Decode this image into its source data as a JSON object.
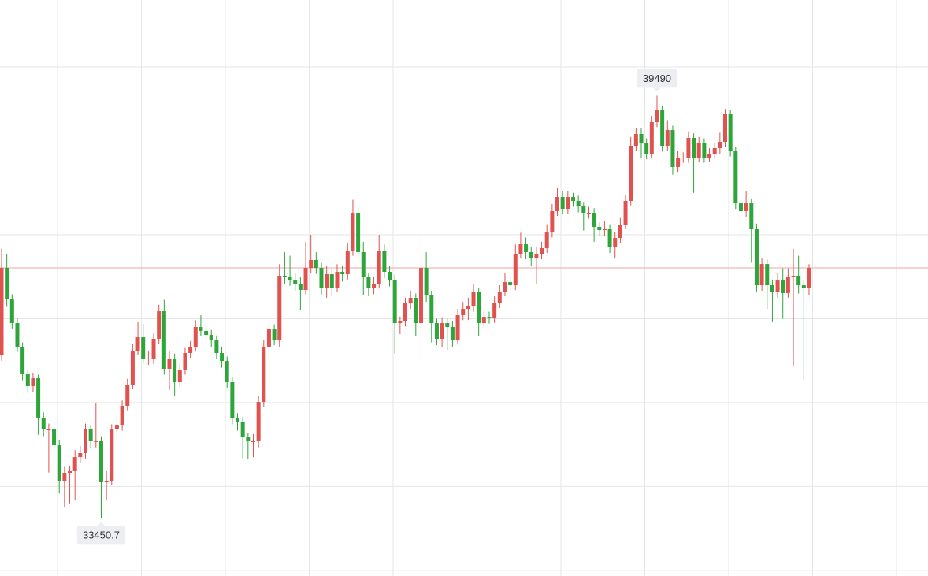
{
  "chart_data": {
    "type": "candlestick",
    "open": [
      35786,
      37026,
      36575,
      36237,
      35899,
      35505,
      35336,
      35448,
      34885,
      34716,
      34716,
      34490,
      33983,
      34096,
      34119,
      34321,
      34378,
      34716,
      34547,
      34547,
      33961,
      33983,
      34716,
      34772,
      35054,
      35358,
      35843,
      36034,
      35730,
      35730,
      36012,
      36406,
      35584,
      35730,
      35392,
      35561,
      35809,
      35899,
      36181,
      36125,
      36068,
      35989,
      35809,
      35696,
      35392,
      34885,
      34829,
      34603,
      34547,
      34547,
      35110,
      35899,
      36147,
      35989,
      36914,
      36891,
      36857,
      36801,
      36711,
      37026,
      37139,
      37026,
      36744,
      36936,
      36744,
      36970,
      36936,
      37274,
      37815,
      37252,
      36891,
      36744,
      36801,
      37274,
      36970,
      36857,
      36237,
      36260,
      36519,
      36598,
      36237,
      37026,
      36632,
      36237,
      36012,
      36237,
      36181,
      35989,
      36350,
      36440,
      36485,
      36688,
      36237,
      36327,
      36305,
      36519,
      36688,
      36823,
      36778,
      37229,
      37364,
      37252,
      37161,
      37229,
      37308,
      37533,
      37838,
      38040,
      37871,
      38040,
      37984,
      37905,
      37815,
      37815,
      37612,
      37567,
      37590,
      37330,
      37454,
      37646,
      37984,
      38773,
      38942,
      38807,
      38660,
      39111,
      39280,
      38773,
      38998,
      38469,
      38604,
      38604,
      38886,
      38604,
      38807,
      38604,
      38660,
      38739,
      38829,
      39224,
      38694,
      37950,
      37838,
      37950,
      37590,
      36778,
      37082,
      36778,
      36688,
      36857,
      36666,
      36891,
      36914,
      36778,
      36744
    ],
    "high": [
      37300,
      37230,
      36650,
      36300,
      35960,
      35560,
      35520,
      35500,
      34960,
      34800,
      34790,
      34560,
      34180,
      34200,
      34420,
      34480,
      34800,
      34780,
      35100,
      34620,
      34120,
      34790,
      34880,
      35130,
      35440,
      35940,
      36250,
      36230,
      35830,
      36100,
      36500,
      36570,
      35830,
      35800,
      35660,
      35880,
      35980,
      36280,
      36350,
      36230,
      36140,
      36060,
      35900,
      35760,
      35460,
      34950,
      34900,
      34660,
      34650,
      35200,
      35990,
      36300,
      36220,
      37080,
      37250,
      37200,
      36950,
      36900,
      37400,
      37500,
      37250,
      37100,
      37050,
      37000,
      37080,
      37050,
      37380,
      38000,
      37900,
      37400,
      36960,
      36900,
      37500,
      37360,
      37050,
      36930,
      36330,
      36600,
      36700,
      36660,
      37480,
      37250,
      36700,
      36300,
      36320,
      36300,
      36260,
      36440,
      36540,
      36600,
      36790,
      36740,
      36420,
      36400,
      36620,
      36780,
      36960,
      36900,
      37360,
      37530,
      37460,
      37320,
      37320,
      37400,
      37650,
      37940,
      38170,
      38130,
      38120,
      38100,
      38060,
      37970,
      37900,
      37880,
      37680,
      37700,
      37650,
      37540,
      37740,
      38070,
      38900,
      39030,
      39020,
      38880,
      39200,
      39490,
      39350,
      39140,
      39060,
      38700,
      38680,
      38980,
      38950,
      38900,
      38880,
      38740,
      38820,
      38960,
      39300,
      39290,
      38760,
      38040,
      38120,
      38020,
      37660,
      37160,
      37150,
      36860,
      36950,
      37020,
      37020,
      37300,
      37200,
      36860,
      37080
    ],
    "low": [
      35700,
      36480,
      36160,
      35820,
      35420,
      35240,
      35250,
      34640,
      34620,
      34100,
      34390,
      33800,
      33610,
      33660,
      33700,
      34240,
      34300,
      34450,
      34460,
      33450.7,
      33700,
      33920,
      34640,
      34700,
      34990,
      35290,
      35780,
      35660,
      35640,
      35650,
      35940,
      35500,
      35280,
      35190,
      35320,
      35500,
      35740,
      35830,
      36050,
      35990,
      35900,
      35720,
      35600,
      35300,
      34790,
      34700,
      34300,
      34290,
      34320,
      34460,
      35040,
      35700,
      35920,
      35900,
      36800,
      36770,
      36700,
      36420,
      36640,
      36950,
      36940,
      36640,
      36600,
      36620,
      36680,
      36830,
      36860,
      37200,
      37150,
      36640,
      36620,
      36650,
      36730,
      36880,
      36760,
      35800,
      36080,
      36190,
      36440,
      36050,
      35700,
      36540,
      35960,
      35920,
      35900,
      35850,
      35890,
      35930,
      36280,
      36280,
      36400,
      36050,
      36160,
      36230,
      36240,
      36450,
      36620,
      36700,
      36710,
      37160,
      37150,
      37060,
      36800,
      37150,
      37240,
      37460,
      37770,
      37790,
      37800,
      37900,
      37820,
      37560,
      37730,
      37400,
      37480,
      37480,
      37240,
      37160,
      37380,
      37580,
      37920,
      38700,
      38600,
      38580,
      38590,
      39040,
      38690,
      38700,
      38360,
      38400,
      38530,
      38530,
      38100,
      38540,
      38530,
      38540,
      38590,
      38660,
      38760,
      38620,
      37870,
      37300,
      37760,
      37100,
      36690,
      36700,
      36440,
      36250,
      36600,
      36300,
      36600,
      35630,
      36660,
      35430,
      36640
    ],
    "close": [
      37026,
      36575,
      36237,
      35899,
      35505,
      35336,
      35448,
      34885,
      34716,
      34716,
      34490,
      33983,
      34096,
      34119,
      34321,
      34378,
      34716,
      34547,
      34547,
      33961,
      33983,
      34716,
      34772,
      35054,
      35358,
      35843,
      36034,
      35730,
      35730,
      36012,
      36406,
      35584,
      35730,
      35392,
      35561,
      35809,
      35899,
      36181,
      36125,
      36068,
      35989,
      35809,
      35696,
      35392,
      34885,
      34829,
      34603,
      34547,
      34547,
      35110,
      35899,
      36147,
      35989,
      36914,
      36891,
      36857,
      36801,
      36711,
      37026,
      37139,
      37026,
      36744,
      36936,
      36744,
      36970,
      36936,
      37274,
      37815,
      37252,
      36891,
      36744,
      36801,
      37274,
      36970,
      36857,
      36237,
      36260,
      36519,
      36598,
      36237,
      37026,
      36632,
      36237,
      36012,
      36237,
      36181,
      35989,
      36350,
      36440,
      36485,
      36688,
      36237,
      36327,
      36305,
      36519,
      36688,
      36823,
      36778,
      37229,
      37364,
      37252,
      37161,
      37229,
      37308,
      37533,
      37838,
      38040,
      37871,
      38040,
      37984,
      37905,
      37815,
      37815,
      37612,
      37567,
      37590,
      37330,
      37454,
      37646,
      37984,
      38773,
      38942,
      38807,
      38660,
      39111,
      39280,
      38773,
      38998,
      38469,
      38604,
      38604,
      38886,
      38604,
      38807,
      38604,
      38660,
      38739,
      38829,
      39224,
      38694,
      37950,
      37838,
      37950,
      37590,
      36778,
      37082,
      36778,
      36688,
      36857,
      36666,
      36891,
      36914,
      36778,
      36744,
      37026
    ],
    "up_color": "#e0524f",
    "down_color": "#2ea53a",
    "ylim": [
      32620,
      40858
    ],
    "yticks": [
      39900,
      38700,
      37500,
      36300,
      35100,
      33900,
      32700
    ],
    "grid": true
  }
}
